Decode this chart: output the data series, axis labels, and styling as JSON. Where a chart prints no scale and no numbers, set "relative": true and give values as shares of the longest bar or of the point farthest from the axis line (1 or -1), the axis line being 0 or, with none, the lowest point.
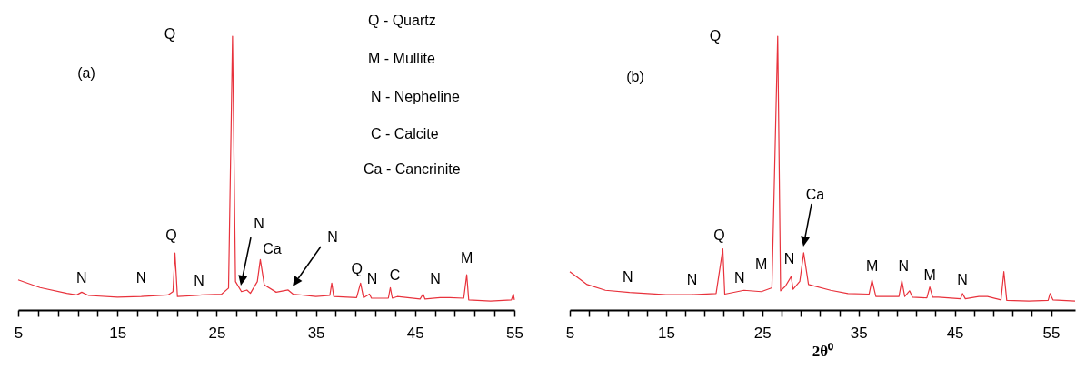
{
  "chart_data": [
    {
      "type": "line",
      "relative": true,
      "xlim": [
        5,
        55
      ],
      "xticks": [
        5,
        {
          "value": 7,
          "label": null
        },
        {
          "value": 9,
          "label": null
        },
        {
          "value": 11,
          "label": null
        },
        {
          "value": 13,
          "label": null
        },
        15,
        {
          "value": 17,
          "label": null
        },
        {
          "value": 19,
          "label": null
        },
        {
          "value": 21,
          "label": null
        },
        {
          "value": 23,
          "label": null
        },
        25,
        {
          "value": 27,
          "label": null
        },
        {
          "value": 29,
          "label": null
        },
        {
          "value": 31,
          "label": null
        },
        {
          "value": 33,
          "label": null
        },
        35,
        {
          "value": 37,
          "label": null
        },
        {
          "value": 39,
          "label": null
        },
        {
          "value": 41,
          "label": null
        },
        {
          "value": 43,
          "label": null
        },
        45,
        {
          "value": 47,
          "label": null
        },
        {
          "value": 49,
          "label": null
        },
        {
          "value": 51,
          "label": null
        },
        {
          "value": 53,
          "label": null
        },
        55
      ],
      "x": [
        5,
        7.2,
        9.9,
        10.9,
        11.4,
        12.1,
        15,
        17.4,
        20.1,
        20.6,
        20.8,
        21.05,
        23,
        23.5,
        25.5,
        26.2,
        26.6,
        26.9,
        27.5,
        28.05,
        28.4,
        29.1,
        29.4,
        29.8,
        31,
        32.2,
        32.7,
        35,
        36.4,
        36.6,
        36.8,
        39.1,
        39.5,
        39.8,
        40.4,
        40.6,
        42.3,
        42.5,
        42.7,
        43.2,
        45.5,
        45.8,
        46,
        47.5,
        48.5,
        49.9,
        50.2,
        50.4,
        52.6,
        54.7,
        54.9,
        55
      ],
      "series": [
        {
          "color": "#e8323c",
          "values": [
            0.11,
            0.082,
            0.061,
            0.055,
            0.065,
            0.053,
            0.047,
            0.049,
            0.055,
            0.067,
            0.208,
            0.049,
            0.053,
            0.055,
            0.058,
            0.08,
            1,
            0.104,
            0.067,
            0.073,
            0.061,
            0.104,
            0.184,
            0.092,
            0.065,
            0.073,
            0.058,
            0.049,
            0.053,
            0.098,
            0.049,
            0.045,
            0.098,
            0.045,
            0.058,
            0.043,
            0.043,
            0.082,
            0.043,
            0.049,
            0.04,
            0.058,
            0.04,
            0.045,
            0.045,
            0.043,
            0.129,
            0.037,
            0.033,
            0.037,
            0.058,
            0.037
          ]
        }
      ],
      "annotations": [
        "(a)",
        "Q",
        "Q - Quartz",
        "M - Mullite",
        "N - Nepheline",
        "C - Calcite",
        "Ca - Cancrinite",
        "N",
        "N",
        {
          "text": "N",
          "x": 11.4,
          "y": 0.065
        },
        {
          "text": "N",
          "x": 17.4,
          "y": 0.049
        },
        {
          "text": "Q",
          "x": 20.8,
          "y": 0.208
        },
        {
          "text": "N",
          "x": 23.5,
          "y": 0.055
        },
        {
          "text": "Ca",
          "x": 29.4,
          "y": 0.184
        },
        {
          "text": "Q",
          "x": 39.5,
          "y": 0.098
        },
        {
          "text": "N",
          "x": 40.4,
          "y": 0.058
        },
        {
          "text": "C",
          "x": 42.5,
          "y": 0.082
        },
        {
          "text": "N",
          "x": 47.5,
          "y": 0.045
        },
        {
          "text": "M",
          "x": 50.2,
          "y": 0.129
        }
      ]
    },
    {
      "type": "line",
      "relative": true,
      "xlabel": "2θ⁰",
      "xlim": [
        5,
        57.5
      ],
      "xticks": [
        5,
        {
          "value": 7,
          "label": null
        },
        {
          "value": 9,
          "label": null
        },
        {
          "value": 11,
          "label": null
        },
        {
          "value": 13,
          "label": null
        },
        15,
        {
          "value": 17,
          "label": null
        },
        {
          "value": 19,
          "label": null
        },
        {
          "value": 21,
          "label": null
        },
        {
          "value": 23,
          "label": null
        },
        25,
        {
          "value": 27,
          "label": null
        },
        {
          "value": 29,
          "label": null
        },
        {
          "value": 31,
          "label": null
        },
        {
          "value": 33,
          "label": null
        },
        35,
        {
          "value": 37,
          "label": null
        },
        {
          "value": 39,
          "label": null
        },
        {
          "value": 41,
          "label": null
        },
        {
          "value": 43,
          "label": null
        },
        45,
        {
          "value": 47,
          "label": null
        },
        {
          "value": 49,
          "label": null
        },
        {
          "value": 51,
          "label": null
        },
        {
          "value": 53,
          "label": null
        },
        55
      ],
      "x": [
        5,
        6.8,
        8.7,
        11.2,
        15,
        17.7,
        20.2,
        20.9,
        21.1,
        23.1,
        24.9,
        26,
        26.6,
        26.9,
        27.4,
        28,
        28.2,
        28.9,
        29.3,
        29.8,
        32.1,
        33.9,
        36.1,
        36.4,
        36.8,
        39.2,
        39.5,
        39.8,
        40.3,
        40.6,
        42.1,
        42.4,
        42.7,
        43.3,
        45.6,
        45.8,
        46.1,
        47.5,
        48.4,
        49.8,
        50.1,
        50.4,
        52.7,
        54.7,
        54.9,
        55.2,
        57.5
      ],
      "series": [
        {
          "color": "#e8323c",
          "values": [
            0.14,
            0.093,
            0.072,
            0.064,
            0.056,
            0.056,
            0.06,
            0.223,
            0.058,
            0.072,
            0.067,
            0.081,
            1,
            0.07,
            0.087,
            0.122,
            0.076,
            0.105,
            0.209,
            0.093,
            0.072,
            0.06,
            0.058,
            0.11,
            0.049,
            0.049,
            0.107,
            0.049,
            0.07,
            0.047,
            0.044,
            0.084,
            0.047,
            0.047,
            0.041,
            0.06,
            0.041,
            0.049,
            0.049,
            0.037,
            0.14,
            0.035,
            0.033,
            0.035,
            0.06,
            0.037,
            0.033
          ]
        }
      ],
      "annotations": [
        "(b)",
        "Q",
        "Ca",
        {
          "text": "N",
          "x": 11.2,
          "y": 0.064
        },
        {
          "text": "N",
          "x": 17.7,
          "y": 0.056
        },
        {
          "text": "Q",
          "x": 20.9,
          "y": 0.223
        },
        {
          "text": "N",
          "x": 23.1,
          "y": 0.072
        },
        {
          "text": "M",
          "x": 24.9,
          "y": 0.067
        },
        {
          "text": "N",
          "x": 28,
          "y": 0.122
        },
        {
          "text": "M",
          "x": 36.4,
          "y": 0.11
        },
        {
          "text": "N",
          "x": 39.5,
          "y": 0.107
        },
        {
          "text": "M",
          "x": 42.4,
          "y": 0.084
        },
        {
          "text": "N",
          "x": 45.8,
          "y": 0.06
        }
      ]
    }
  ]
}
